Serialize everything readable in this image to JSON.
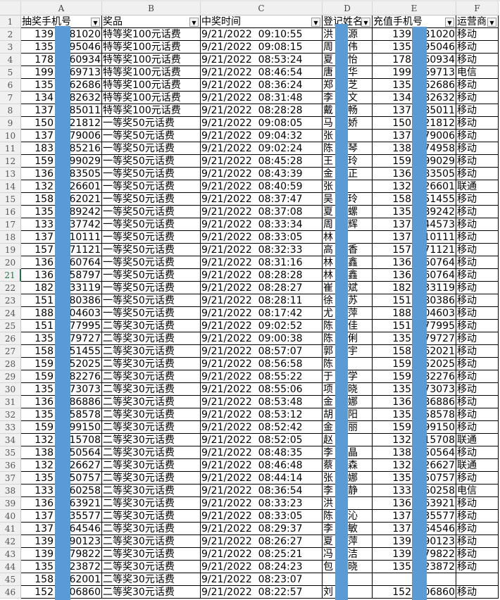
{
  "columns": [
    "A",
    "B",
    "C",
    "D",
    "E",
    "F"
  ],
  "headers": [
    "抽奖手机号",
    "奖品",
    "中奖时间",
    "登记姓名",
    "充值手机号",
    "运营商"
  ],
  "selected_row": 21,
  "redaction_color": "#5b9bd5",
  "rows": [
    [
      "139",
      "81020",
      "特等奖100元话费",
      "9/21/2022  09:10:55",
      "洪",
      "源",
      "139",
      "81020",
      "移动"
    ],
    [
      "135",
      "95046",
      "特等奖100元话费",
      "9/21/2022  09:08:15",
      "周",
      "伟",
      "135",
      "95046",
      "移动"
    ],
    [
      "178",
      "60934",
      "特等奖100元话费",
      "9/21/2022  08:53:24",
      "夏",
      "怡",
      "178",
      "60934",
      "移动"
    ],
    [
      "199",
      "69713",
      "特等奖100元话费",
      "9/21/2022  08:46:54",
      "唐",
      "华",
      "199",
      "69713",
      "电信"
    ],
    [
      "135",
      "62686",
      "特等奖100元话费",
      "9/21/2022  08:36:24",
      "郑",
      "芝",
      "135",
      "62686",
      "移动"
    ],
    [
      "134",
      "82632",
      "特等奖100元话费",
      "9/21/2022  08:31:48",
      "李",
      "文",
      "134",
      "82632",
      "移动"
    ],
    [
      "137",
      "85011",
      "特等奖100元话费",
      "9/21/2022  08:28:28",
      "戴",
      "畅",
      "137",
      "85011",
      "移动"
    ],
    [
      "150",
      "21812",
      "一等奖50元话费",
      "9/21/2022  09:08:05",
      "马",
      "娇",
      "150",
      "21812",
      "移动"
    ],
    [
      "137",
      "79006",
      "一等奖50元话费",
      "9/21/2022  09:04:32",
      "张",
      "",
      "137",
      "79006",
      "移动"
    ],
    [
      "183",
      "85216",
      "一等奖50元话费",
      "9/21/2022  09:02:24",
      "陈",
      "琴",
      "138",
      "74958",
      "移动"
    ],
    [
      "159",
      "99029",
      "一等奖50元话费",
      "9/21/2022  08:45:28",
      "王",
      "玲",
      "159",
      "99029",
      "移动"
    ],
    [
      "136",
      "83505",
      "一等奖50元话费",
      "9/21/2022  08:43:39",
      "金",
      "正",
      "136",
      "83505",
      "移动"
    ],
    [
      "132",
      "26601",
      "一等奖50元话费",
      "9/21/2022  08:40:59",
      "张",
      "",
      "132",
      "26601",
      "联通"
    ],
    [
      "158",
      "62021",
      "一等奖50元话费",
      "9/21/2022  08:37:47",
      "吴",
      "玲",
      "158",
      "51455",
      "移动"
    ],
    [
      "135",
      "89242",
      "一等奖50元话费",
      "9/21/2022  08:37:08",
      "夏",
      "螺",
      "135",
      "89242",
      "移动"
    ],
    [
      "133",
      "37742",
      "一等奖50元话费",
      "9/21/2022  08:33:34",
      "周",
      "辉",
      "137",
      "44573",
      "移动"
    ],
    [
      "137",
      "10111",
      "一等奖50元话费",
      "9/21/2022  08:33:05",
      "林",
      "",
      "137",
      "10111",
      "移动"
    ],
    [
      "157",
      "71121",
      "一等奖50元话费",
      "9/21/2022  08:32:33",
      "高",
      "香",
      "157",
      "71121",
      "移动"
    ],
    [
      "136",
      "60764",
      "一等奖50元话费",
      "9/21/2022  08:31:16",
      "林",
      "鑫",
      "136",
      "60764",
      "移动"
    ],
    [
      "136",
      "58797",
      "一等奖50元话费",
      "9/21/2022  08:28:28",
      "林",
      "鑫",
      "136",
      "60764",
      "移动"
    ],
    [
      "182",
      "33119",
      "一等奖50元话费",
      "9/21/2022  08:28:27",
      "崔",
      "斌",
      "182",
      "33119",
      "移动"
    ],
    [
      "151",
      "80386",
      "一等奖50元话费",
      "9/21/2022  08:28:11",
      "徐",
      "苏",
      "151",
      "80386",
      "移动"
    ],
    [
      "188",
      "04603",
      "一等奖50元话费",
      "9/21/2022  08:17:42",
      "尤",
      "萍",
      "188",
      "04603",
      "移动"
    ],
    [
      "151",
      "77995",
      "二等奖30元话费",
      "9/21/2022  09:02:52",
      "陈",
      "佳",
      "151",
      "77995",
      "移动"
    ],
    [
      "135",
      "79727",
      "二等奖30元话费",
      "9/21/2022  09:00:38",
      "陈",
      "俐",
      "135",
      "79727",
      "移动"
    ],
    [
      "158",
      "51455",
      "二等奖30元话费",
      "9/21/2022  08:57:07",
      "郭",
      "宇",
      "158",
      "62021",
      "移动"
    ],
    [
      "159",
      "52025",
      "二等奖30元话费",
      "9/21/2022  08:56:58",
      "陈",
      "",
      "159",
      "52025",
      "移动"
    ],
    [
      "159",
      "82276",
      "二等奖30元话费",
      "9/21/2022  08:55:22",
      "于",
      "学",
      "159",
      "82276",
      "移动"
    ],
    [
      "135",
      "73073",
      "二等奖30元话费",
      "9/21/2022  08:55:06",
      "项",
      "晓",
      "135",
      "73073",
      "移动"
    ],
    [
      "136",
      "86886",
      "二等奖30元话费",
      "9/21/2022  08:53:48",
      "金",
      "娜",
      "136",
      "86886",
      "移动"
    ],
    [
      "135",
      "58578",
      "二等奖30元话费",
      "9/21/2022  08:53:12",
      "胡",
      "阳",
      "135",
      "58578",
      "移动"
    ],
    [
      "159",
      "99150",
      "二等奖30元话费",
      "9/21/2022  08:52:42",
      "金",
      "丽",
      "159",
      "99150",
      "移动"
    ],
    [
      "132",
      "15708",
      "二等奖30元话费",
      "9/21/2022  08:52:05",
      "赵",
      "",
      "132",
      "15708",
      "联通"
    ],
    [
      "138",
      "50564",
      "二等奖30元话费",
      "9/21/2022  08:48:35",
      "李",
      "晶",
      "138",
      "50564",
      "移动"
    ],
    [
      "132",
      "26627",
      "二等奖30元话费",
      "9/21/2022  08:46:48",
      "蔡",
      "森",
      "132",
      "26627",
      "联通"
    ],
    [
      "135",
      "50757",
      "二等奖30元话费",
      "9/21/2022  08:44:14",
      "张",
      "娜",
      "135",
      "50757",
      "移动"
    ],
    [
      "133",
      "60258",
      "二等奖30元话费",
      "9/21/2022  08:36:54",
      "李",
      "静",
      "133",
      "60258",
      "电信"
    ],
    [
      "136",
      "63921",
      "二等奖30元话费",
      "9/21/2022  08:33:23",
      "洪",
      "",
      "136",
      "63921",
      "移动"
    ],
    [
      "137",
      "35577",
      "二等奖30元话费",
      "9/21/2022  08:33:05",
      "陈",
      "沁",
      "137",
      "35577",
      "移动"
    ],
    [
      "137",
      "64546",
      "二等奖30元话费",
      "9/21/2022  08:29:37",
      "李",
      "敏",
      "137",
      "64546",
      "移动"
    ],
    [
      "139",
      "90123",
      "二等奖30元话费",
      "9/21/2022  08:26:27",
      "夏",
      "萍",
      "139",
      "90123",
      "移动"
    ],
    [
      "139",
      "79822",
      "二等奖30元话费",
      "9/21/2022  08:25:21",
      "冯",
      "洁",
      "139",
      "79822",
      "移动"
    ],
    [
      "135",
      "23872",
      "二等奖30元话费",
      "9/21/2022  08:24:23",
      "包",
      "晓",
      "135",
      "23872",
      "移动"
    ],
    [
      "158",
      "62001",
      "二等奖30元话费",
      "9/21/2022  08:23:07",
      "",
      "",
      "",
      "",
      "",
      ""
    ],
    [
      "152",
      "06860",
      "二等奖30元话费",
      "9/21/2022  08:22:57",
      "刘",
      "",
      "152",
      "06860",
      "移动"
    ]
  ]
}
